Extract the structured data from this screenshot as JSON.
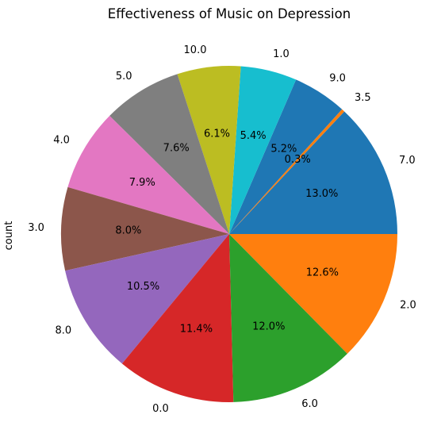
{
  "chart_data": {
    "type": "pie",
    "title": "Effectiveness of Music on Depression",
    "ylabel": "count",
    "categories": [
      "7.0",
      "3.5",
      "9.0",
      "1.0",
      "10.0",
      "5.0",
      "4.0",
      "3.0",
      "8.0",
      "0.0",
      "6.0",
      "2.0"
    ],
    "percent_labels": [
      "13.0%",
      "0.3%",
      "5.2%",
      "5.4%",
      "6.1%",
      "7.6%",
      "7.9%",
      "8.0%",
      "10.5%",
      "11.4%",
      "12.0%",
      "12.6%"
    ],
    "values": [
      13.0,
      0.3,
      5.2,
      5.4,
      6.1,
      7.6,
      7.9,
      8.0,
      10.5,
      11.4,
      12.0,
      12.6
    ],
    "colors": [
      "#1f77b4",
      "#ff7f0e",
      "#1f77b4",
      "#17becf",
      "#bcbd22",
      "#7f7f7f",
      "#e377c2",
      "#8c564b",
      "#9467bd",
      "#d62728",
      "#2ca02c",
      "#ff7f0e"
    ],
    "legend": "none"
  }
}
